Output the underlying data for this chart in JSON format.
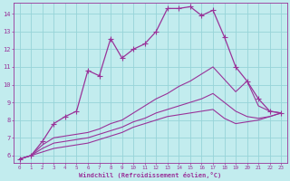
{
  "xlabel": "Windchill (Refroidissement éolien,°C)",
  "xlim": [
    -0.5,
    23.5
  ],
  "ylim": [
    5.6,
    14.6
  ],
  "xticks": [
    0,
    1,
    2,
    3,
    4,
    5,
    6,
    7,
    8,
    9,
    10,
    11,
    12,
    13,
    14,
    15,
    16,
    17,
    18,
    19,
    20,
    21,
    22,
    23
  ],
  "yticks": [
    6,
    7,
    8,
    9,
    10,
    11,
    12,
    13,
    14
  ],
  "bg_color": "#c2ecee",
  "grid_color": "#96d4d8",
  "line_color": "#993399",
  "main_line": [
    5.8,
    6.0,
    6.8,
    7.8,
    8.2,
    8.5,
    10.8,
    10.5,
    12.6,
    11.5,
    12.0,
    12.3,
    13.0,
    14.3,
    14.3,
    14.4,
    13.9,
    14.2,
    12.7,
    11.0,
    10.2,
    9.2,
    8.5,
    8.4
  ],
  "line2": [
    5.8,
    6.0,
    6.6,
    7.0,
    7.1,
    7.2,
    7.3,
    7.5,
    7.8,
    8.0,
    8.4,
    8.8,
    9.2,
    9.5,
    9.9,
    10.2,
    10.6,
    11.0,
    10.3,
    9.6,
    10.2,
    8.8,
    8.5,
    8.4
  ],
  "line3": [
    5.8,
    6.0,
    6.4,
    6.7,
    6.8,
    6.9,
    7.0,
    7.2,
    7.4,
    7.6,
    7.9,
    8.1,
    8.4,
    8.6,
    8.8,
    9.0,
    9.2,
    9.5,
    9.0,
    8.5,
    8.2,
    8.1,
    8.2,
    8.4
  ],
  "line4": [
    5.8,
    6.0,
    6.2,
    6.4,
    6.5,
    6.6,
    6.7,
    6.9,
    7.1,
    7.3,
    7.6,
    7.8,
    8.0,
    8.2,
    8.3,
    8.4,
    8.5,
    8.6,
    8.1,
    7.8,
    7.9,
    8.0,
    8.2,
    8.4
  ]
}
